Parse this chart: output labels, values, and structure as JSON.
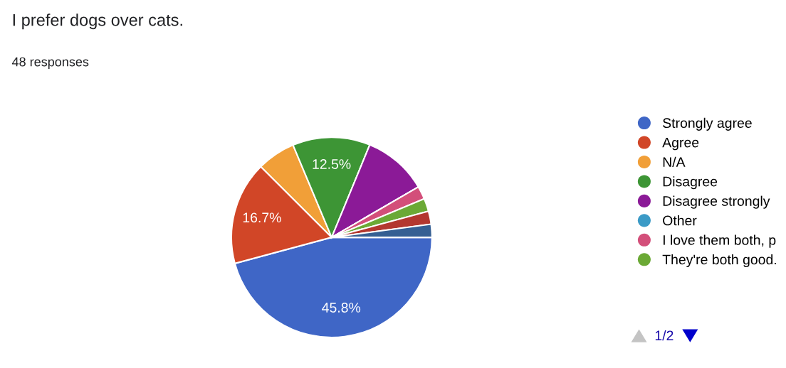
{
  "chart_data": {
    "type": "pie",
    "title": "I prefer dogs over cats.",
    "subtitle": "48 responses",
    "categories": [
      "Strongly agree",
      "Agree",
      "N/A",
      "Disagree",
      "Disagree strongly",
      "Other",
      "I love them both, p",
      "They're both good.",
      null,
      null
    ],
    "values": [
      45.8,
      16.7,
      6.2,
      12.5,
      10.4,
      0,
      2.1,
      2.1,
      2.1,
      2.1
    ],
    "colors": [
      "#3f66c6",
      "#d14627",
      "#f19f38",
      "#3d9535",
      "#8b1a97",
      "#3b9ac6",
      "#d34f7a",
      "#6ba935",
      "#b3372f",
      "#355f93"
    ],
    "value_labels": [
      "45.8%",
      "16.7%",
      null,
      "12.5%",
      null,
      null,
      null,
      null,
      null,
      null
    ],
    "legend": "right",
    "annotations": [
      "1/2"
    ]
  }
}
